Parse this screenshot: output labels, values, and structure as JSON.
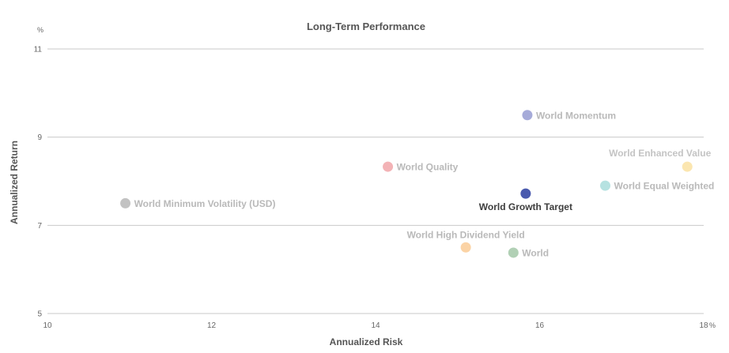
{
  "chart_data": {
    "type": "scatter",
    "title": "Long-Term Performance",
    "xlabel": "Annualized Risk",
    "ylabel": "Annualized Return",
    "x_unit": "%",
    "y_unit": "%",
    "xlim": [
      10,
      18
    ],
    "ylim": [
      5,
      11
    ],
    "x_ticks": [
      "10",
      "12",
      "14",
      "16",
      "18"
    ],
    "y_ticks": [
      "5",
      "7",
      "9",
      "11"
    ],
    "grid": "horizontal",
    "points": [
      {
        "name": "World Momentum",
        "x": 15.85,
        "y": 9.5,
        "color": "#a6abd9",
        "label_color": "#b9b9b9",
        "label_pos": "right"
      },
      {
        "name": "World Enhanced Value",
        "x": 17.8,
        "y": 8.33,
        "color": "#fbe6b0",
        "label_color": "#c4c4c4",
        "label_pos": "above-left"
      },
      {
        "name": "World Quality",
        "x": 14.15,
        "y": 8.33,
        "color": "#f3b3b6",
        "label_color": "#b9b9b9",
        "label_pos": "right"
      },
      {
        "name": "World Equal Weighted",
        "x": 16.8,
        "y": 7.9,
        "color": "#b6e2e1",
        "label_color": "#b9b9b9",
        "label_pos": "right"
      },
      {
        "name": "World Growth Target",
        "x": 15.83,
        "y": 7.72,
        "color": "#4a5aae",
        "label_color": "#3d3d3d",
        "label_pos": "below"
      },
      {
        "name": "World Minimum Volatility (USD)",
        "x": 10.95,
        "y": 7.5,
        "color": "#c2c2c2",
        "label_color": "#b9b9b9",
        "label_pos": "right"
      },
      {
        "name": "World High Dividend Yield",
        "x": 15.1,
        "y": 6.5,
        "color": "#fbd3a5",
        "label_color": "#b9b9b9",
        "label_pos": "above"
      },
      {
        "name": "World",
        "x": 15.68,
        "y": 6.38,
        "color": "#b1d0b5",
        "label_color": "#b9b9b9",
        "label_pos": "right"
      }
    ]
  }
}
